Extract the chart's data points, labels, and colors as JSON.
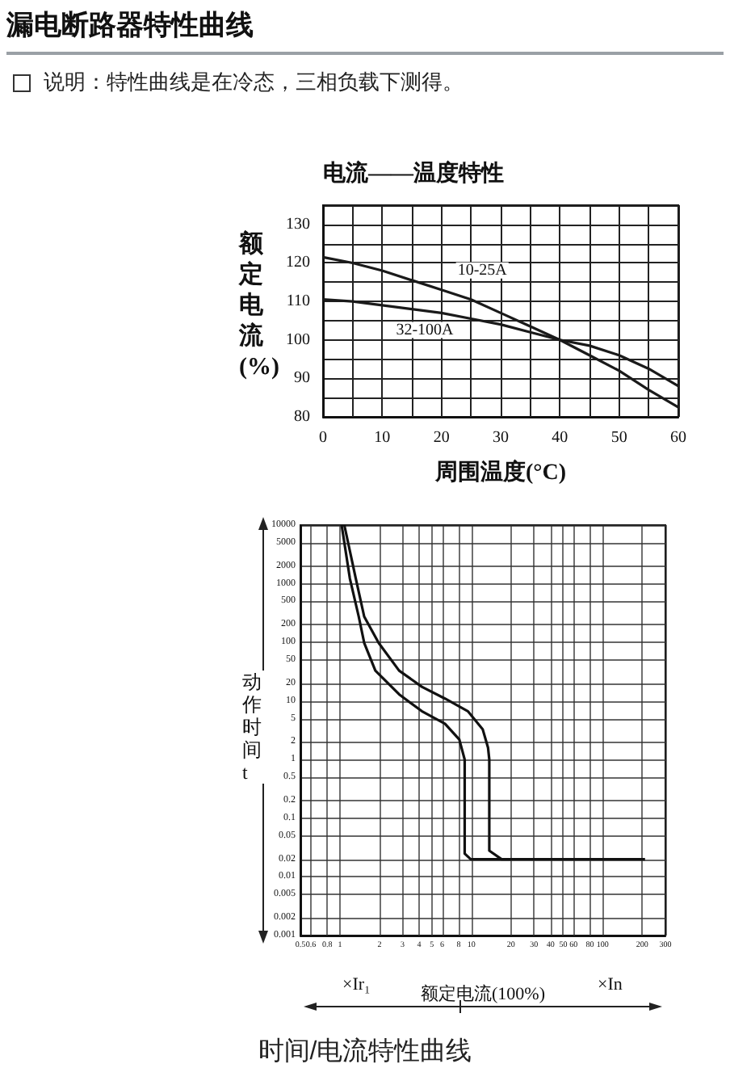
{
  "chart_data": [
    {
      "type": "line",
      "title": "电流——温度特性",
      "xlabel": "周围温度(°C)",
      "ylabel": "额定电流(%)",
      "annotations": [
        "漏电断路器特性曲线",
        "说明：特性曲线是在冷态，三相负载下测得。"
      ],
      "x": [
        0,
        5,
        10,
        15,
        20,
        25,
        30,
        35,
        40,
        45,
        50,
        55,
        60
      ],
      "series": [
        {
          "name": "10-25A",
          "color": "#1a1a1a",
          "values": [
            121.5,
            120,
            118,
            115.5,
            113,
            110.5,
            107,
            103.5,
            100,
            96,
            92,
            87,
            82.5
          ]
        },
        {
          "name": "32-100A",
          "color": "#1a1a1a",
          "values": [
            110.5,
            110,
            109,
            108,
            107,
            105.5,
            104,
            102,
            100,
            98.5,
            96,
            92.5,
            88
          ]
        }
      ],
      "xlim": [
        0,
        60
      ],
      "xticks": [
        0,
        {
          "value": 5,
          "label": null
        },
        10,
        {
          "value": 15,
          "label": null
        },
        20,
        {
          "value": 25,
          "label": null
        },
        30,
        {
          "value": 35,
          "label": null
        },
        40,
        {
          "value": 45,
          "label": null
        },
        50,
        {
          "value": 55,
          "label": null
        },
        60
      ],
      "ylim": [
        80,
        135
      ],
      "yticks": [
        80,
        {
          "value": 85,
          "label": null
        },
        90,
        {
          "value": 95,
          "label": null
        },
        100,
        {
          "value": 105,
          "label": null
        },
        110,
        {
          "value": 115,
          "label": null
        },
        120,
        {
          "value": 125,
          "label": null
        },
        130,
        {
          "value": 135,
          "label": null
        }
      ],
      "grid": true,
      "marker": "none",
      "line_style": "solid"
    },
    {
      "type": "line",
      "title": "时间/电流特性曲线",
      "xlabel": "额定电流(100%)",
      "ylabel": "动作时间t",
      "annotations": [
        "×Ir₁",
        "×In"
      ],
      "series": [
        {
          "color": "#111111",
          "x": [
            1.03,
            1.19,
            1.39,
            1.53,
            1.86,
            2.82,
            4.2,
            6.3,
            8.1,
            8.9,
            8.9,
            9.9,
            20
          ],
          "values": [
            10000,
            1230,
            275,
            98,
            33,
            13,
            6.7,
            4.1,
            2.2,
            1.0,
            0.025,
            0.02,
            0.02
          ]
        },
        {
          "color": "#111111",
          "x": [
            1.08,
            1.32,
            1.53,
            1.97,
            2.82,
            4.2,
            6.3,
            9.4,
            12.2,
            13.4,
            13.7,
            13.7,
            17,
            210
          ],
          "values": [
            10000,
            1230,
            275,
            98,
            33,
            17.5,
            11,
            6.7,
            3.3,
            1.6,
            1.0,
            0.028,
            0.02,
            0.02
          ]
        }
      ],
      "log": "xy",
      "xlim": [
        0.5,
        300
      ],
      "xticks": [
        0.5,
        0.6,
        0.8,
        1,
        2,
        3,
        4,
        5,
        6,
        8,
        10,
        20,
        30,
        40,
        50,
        60,
        80,
        100,
        200,
        300
      ],
      "ylim": [
        0.001,
        10000
      ],
      "yticks": [
        0.001,
        0.002,
        0.005,
        0.01,
        0.02,
        0.05,
        0.1,
        0.2,
        0.5,
        1,
        2,
        5,
        10,
        20,
        50,
        100,
        200,
        500,
        1000,
        2000,
        5000,
        10000
      ],
      "grid": true,
      "marker": "none",
      "line_style": "solid"
    }
  ]
}
